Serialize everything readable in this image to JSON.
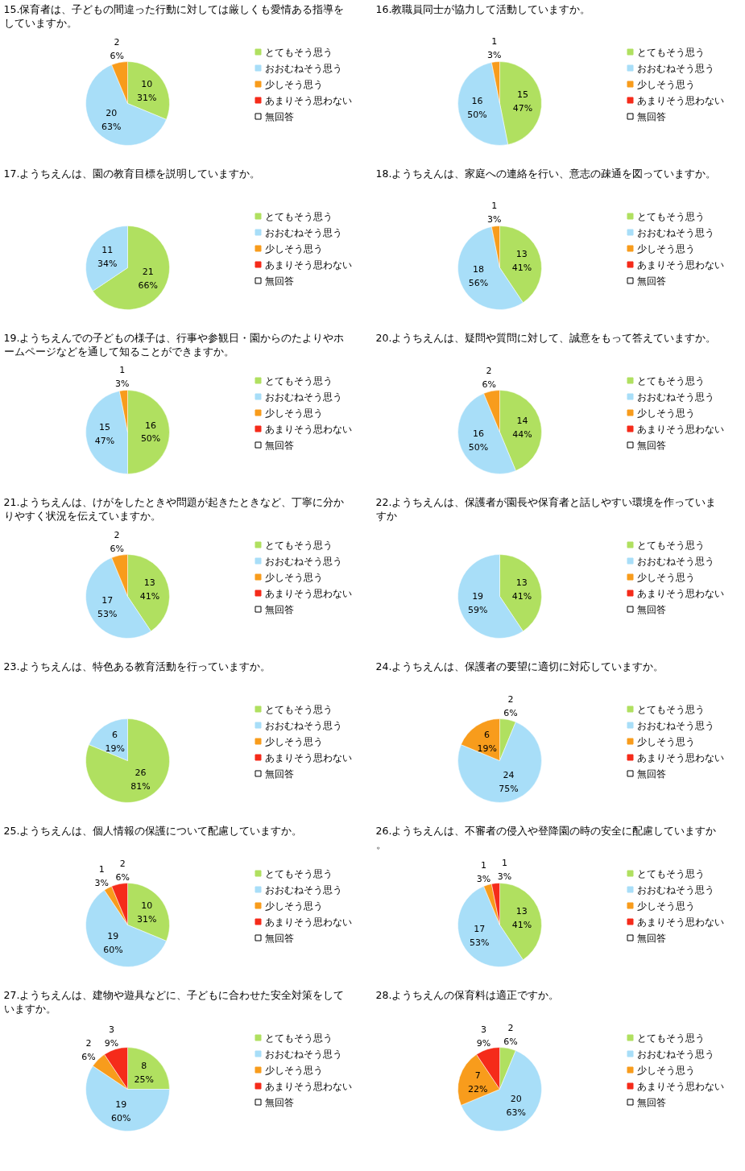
{
  "chart_data": [
    {
      "type": "pie",
      "title": "15.保育者は、子どもの間違った行動に対しては厳しくも愛情ある指導をしていますか。",
      "categories": [
        "とてもそう思う",
        "おおむねそう思う",
        "少しそう思う",
        "あまりそう思わない",
        "無回答"
      ],
      "values": [
        10,
        20,
        2,
        0,
        0
      ],
      "value_labels": [
        "10\n31%",
        "20\n63%",
        "2\n6%",
        null,
        null
      ],
      "colors": [
        "#b0e060",
        "#a8def8",
        "#f89c1c",
        "#f52b1a",
        "#ffffff"
      ],
      "legend": "right"
    },
    {
      "type": "pie",
      "title": "16.教職員同士が協力して活動していますか。",
      "categories": [
        "とてもそう思う",
        "おおむねそう思う",
        "少しそう思う",
        "あまりそう思わない",
        "無回答"
      ],
      "values": [
        15,
        16,
        1,
        0,
        0
      ],
      "value_labels": [
        "15\n47%",
        "16\n50%",
        "1\n3%",
        null,
        null
      ],
      "colors": [
        "#b0e060",
        "#a8def8",
        "#f89c1c",
        "#f52b1a",
        "#ffffff"
      ],
      "legend": "right"
    },
    {
      "type": "pie",
      "title": "17.ようちえんは、園の教育目標を説明していますか。",
      "categories": [
        "とてもそう思う",
        "おおむねそう思う",
        "少しそう思う",
        "あまりそう思わない",
        "無回答"
      ],
      "values": [
        21,
        11,
        0,
        0,
        0
      ],
      "value_labels": [
        "21\n66%",
        "11\n34%",
        null,
        null,
        null
      ],
      "colors": [
        "#b0e060",
        "#a8def8",
        "#f89c1c",
        "#f52b1a",
        "#ffffff"
      ],
      "legend": "right"
    },
    {
      "type": "pie",
      "title": "18.ようちえんは、家庭への連絡を行い、意志の疎通を図っていますか。",
      "categories": [
        "とてもそう思う",
        "おおむねそう思う",
        "少しそう思う",
        "あまりそう思わない",
        "無回答"
      ],
      "values": [
        13,
        18,
        1,
        0,
        0
      ],
      "value_labels": [
        "13\n41%",
        "18\n56%",
        "1\n3%",
        null,
        null
      ],
      "colors": [
        "#b0e060",
        "#a8def8",
        "#f89c1c",
        "#f52b1a",
        "#ffffff"
      ],
      "legend": "right"
    },
    {
      "type": "pie",
      "title": "19.ようちえんでの子どもの様子は、行事や参観日・園からのたよりやホームページなどを通して知ることができますか。",
      "categories": [
        "とてもそう思う",
        "おおむねそう思う",
        "少しそう思う",
        "あまりそう思わない",
        "無回答"
      ],
      "values": [
        16,
        15,
        1,
        0,
        0
      ],
      "value_labels": [
        "16\n50%",
        "15\n47%",
        "1\n3%",
        null,
        null
      ],
      "colors": [
        "#b0e060",
        "#a8def8",
        "#f89c1c",
        "#f52b1a",
        "#ffffff"
      ],
      "legend": "right"
    },
    {
      "type": "pie",
      "title": "20.ようちえんは、疑問や質問に対して、誠意をもって答えていますか。",
      "categories": [
        "とてもそう思う",
        "おおむねそう思う",
        "少しそう思う",
        "あまりそう思わない",
        "無回答"
      ],
      "values": [
        14,
        16,
        2,
        0,
        0
      ],
      "value_labels": [
        "14\n44%",
        "16\n50%",
        "2\n6%",
        null,
        null
      ],
      "colors": [
        "#b0e060",
        "#a8def8",
        "#f89c1c",
        "#f52b1a",
        "#ffffff"
      ],
      "legend": "right"
    },
    {
      "type": "pie",
      "title": "21.ようちえんは、けがをしたときや問題が起きたときなど、丁寧に分かりやすく状況を伝えていますか。",
      "categories": [
        "とてもそう思う",
        "おおむねそう思う",
        "少しそう思う",
        "あまりそう思わない",
        "無回答"
      ],
      "values": [
        13,
        17,
        2,
        0,
        0
      ],
      "value_labels": [
        "13\n41%",
        "17\n53%",
        "2\n6%",
        null,
        null
      ],
      "colors": [
        "#b0e060",
        "#a8def8",
        "#f89c1c",
        "#f52b1a",
        "#ffffff"
      ],
      "legend": "right"
    },
    {
      "type": "pie",
      "title": "22.ようちえんは、保護者が園長や保育者と話しやすい環境を作っていますか",
      "categories": [
        "とてもそう思う",
        "おおむねそう思う",
        "少しそう思う",
        "あまりそう思わない",
        "無回答"
      ],
      "values": [
        13,
        19,
        0,
        0,
        0
      ],
      "value_labels": [
        "13\n41%",
        "19\n59%",
        null,
        null,
        null
      ],
      "colors": [
        "#b0e060",
        "#a8def8",
        "#f89c1c",
        "#f52b1a",
        "#ffffff"
      ],
      "legend": "right"
    },
    {
      "type": "pie",
      "title": "23.ようちえんは、特色ある教育活動を行っていますか。",
      "categories": [
        "とてもそう思う",
        "おおむねそう思う",
        "少しそう思う",
        "あまりそう思わない",
        "無回答"
      ],
      "values": [
        26,
        6,
        0,
        0,
        0
      ],
      "value_labels": [
        "26\n81%",
        "6\n19%",
        null,
        null,
        null
      ],
      "colors": [
        "#b0e060",
        "#a8def8",
        "#f89c1c",
        "#f52b1a",
        "#ffffff"
      ],
      "legend": "right"
    },
    {
      "type": "pie",
      "title": "24.ようちえんは、保護者の要望に適切に対応していますか。",
      "categories": [
        "とてもそう思う",
        "おおむねそう思う",
        "少しそう思う",
        "あまりそう思わない",
        "無回答"
      ],
      "values": [
        2,
        24,
        6,
        0,
        0
      ],
      "value_labels": [
        "2\n6%",
        "24\n75%",
        "6\n19%",
        null,
        null
      ],
      "colors": [
        "#b0e060",
        "#a8def8",
        "#f89c1c",
        "#f52b1a",
        "#ffffff"
      ],
      "legend": "right"
    },
    {
      "type": "pie",
      "title": "25.ようちえんは、個人情報の保護について配慮していますか。",
      "categories": [
        "とてもそう思う",
        "おおむねそう思う",
        "少しそう思う",
        "あまりそう思わない",
        "無回答"
      ],
      "values": [
        10,
        19,
        1,
        2,
        0
      ],
      "value_labels": [
        "10\n31%",
        "19\n60%",
        "1\n3%",
        "2\n6%",
        null
      ],
      "colors": [
        "#b0e060",
        "#a8def8",
        "#f89c1c",
        "#f52b1a",
        "#ffffff"
      ],
      "legend": "right"
    },
    {
      "type": "pie",
      "title": "26.ようちえんは、不審者の侵入や登降園の時の安全に配慮していますか。",
      "categories": [
        "とてもそう思う",
        "おおむねそう思う",
        "少しそう思う",
        "あまりそう思わない",
        "無回答"
      ],
      "values": [
        13,
        17,
        1,
        1,
        0
      ],
      "value_labels": [
        "13\n41%",
        "17\n53%",
        "1\n3%",
        "1\n3%",
        null
      ],
      "colors": [
        "#b0e060",
        "#a8def8",
        "#f89c1c",
        "#f52b1a",
        "#ffffff"
      ],
      "legend": "right"
    },
    {
      "type": "pie",
      "title": "27.ようちえんは、建物や遊具などに、子どもに合わせた安全対策をしていますか。",
      "categories": [
        "とてもそう思う",
        "おおむねそう思う",
        "少しそう思う",
        "あまりそう思わない",
        "無回答"
      ],
      "values": [
        8,
        19,
        2,
        3,
        0
      ],
      "value_labels": [
        "8\n25%",
        "19\n60%",
        "2\n6%",
        "3\n9%",
        null
      ],
      "colors": [
        "#b0e060",
        "#a8def8",
        "#f89c1c",
        "#f52b1a",
        "#ffffff"
      ],
      "legend": "right"
    },
    {
      "type": "pie",
      "title": "28.ようちえんの保育料は適正ですか。",
      "categories": [
        "とてもそう思う",
        "おおむねそう思う",
        "少しそう思う",
        "あまりそう思わない",
        "無回答"
      ],
      "values": [
        2,
        20,
        7,
        3,
        0
      ],
      "value_labels": [
        "2\n6%",
        "20\n63%",
        "7\n22%",
        "3\n9%",
        null
      ],
      "colors": [
        "#b0e060",
        "#a8def8",
        "#f89c1c",
        "#f52b1a",
        "#ffffff"
      ],
      "legend": "right"
    }
  ]
}
